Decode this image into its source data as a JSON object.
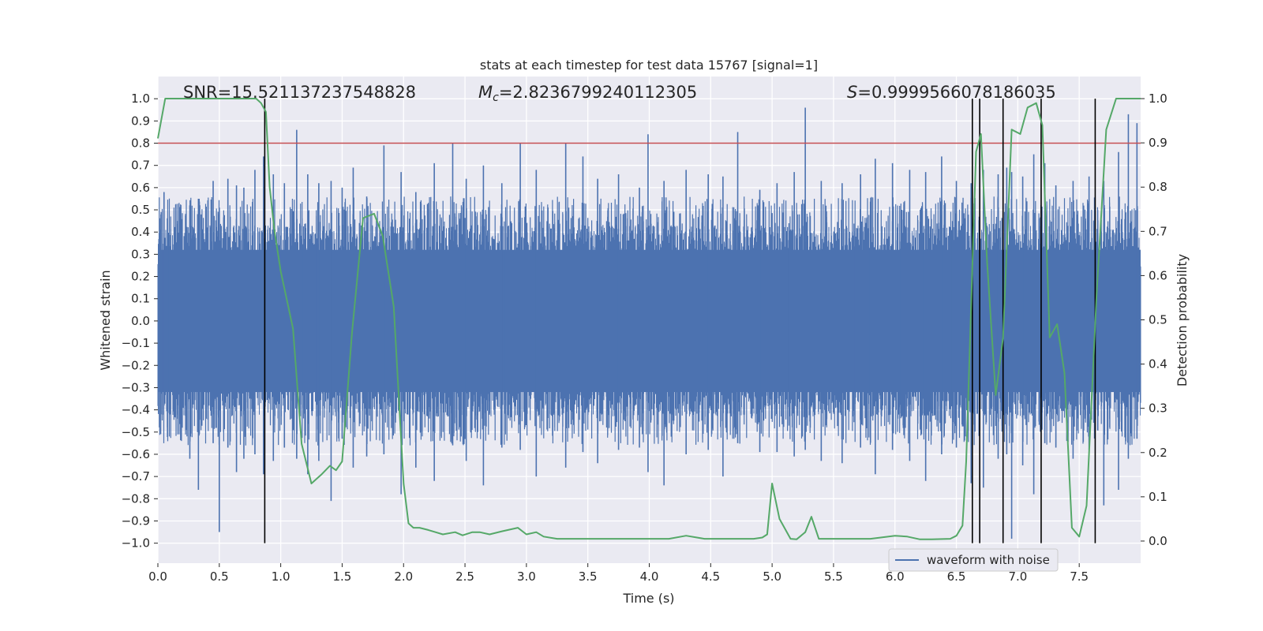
{
  "chart_data": {
    "type": "line",
    "title": "stats at each timestep for test data 15767 [signal=1]",
    "xlabel": "Time (s)",
    "ylabel_left": "Whitened strain",
    "ylabel_right": "Detection probability",
    "xlim": [
      0,
      8
    ],
    "ylim_left": [
      -1.09,
      1.1
    ],
    "ylim_right": [
      -0.05,
      1.05
    ],
    "x_ticks": [
      0.0,
      0.5,
      1.0,
      1.5,
      2.0,
      2.5,
      3.0,
      3.5,
      4.0,
      4.5,
      5.0,
      5.5,
      6.0,
      6.5,
      7.0,
      7.5
    ],
    "x_tick_labels": [
      "0.0",
      "0.5",
      "1.0",
      "1.5",
      "2.0",
      "2.5",
      "3.0",
      "3.5",
      "4.0",
      "4.5",
      "5.0",
      "5.5",
      "6.0",
      "6.5",
      "7.0",
      "7.5"
    ],
    "y_left_ticks": [
      1.0,
      0.9,
      0.8,
      0.7,
      0.6,
      0.5,
      0.4,
      0.3,
      0.2,
      0.1,
      0.0,
      -0.1,
      -0.2,
      -0.3,
      -0.4,
      -0.5,
      -0.6,
      -0.7,
      -0.8,
      -0.9,
      -1.0
    ],
    "y_left_tick_labels": [
      "1.0",
      "0.9",
      "0.8",
      "0.7",
      "0.6",
      "0.5",
      "0.4",
      "0.3",
      "0.2",
      "0.1",
      "0.0",
      "−0.1",
      "−0.2",
      "−0.3",
      "−0.4",
      "−0.5",
      "−0.6",
      "−0.7",
      "−0.8",
      "−0.9",
      "−1.0"
    ],
    "y_right_ticks": [
      1.0,
      0.9,
      0.8,
      0.7,
      0.6,
      0.5,
      0.4,
      0.3,
      0.2,
      0.1,
      0.0
    ],
    "y_right_tick_labels": [
      "1.0",
      "0.9",
      "0.8",
      "0.7",
      "0.6",
      "0.5",
      "0.4",
      "0.3",
      "0.2",
      "0.1",
      "0.0"
    ],
    "grid": true,
    "annotations": {
      "snr": "SNR=15.521137237548828",
      "mc": "=2.8236799240112305",
      "mc_symbol": "M",
      "mc_subscript": "c",
      "s": "=0.9999566078186035",
      "s_symbol": "S"
    },
    "threshold_line": {
      "y_left": 0.8,
      "color": "#c44e52"
    },
    "detection_lines_x": [
      0.87,
      6.63,
      6.69,
      6.88,
      7.19,
      7.63
    ],
    "waveform": {
      "name": "waveform with noise",
      "color": "#4c72b0",
      "envelope": 0.43,
      "spikes": [
        [
          0.05,
          0.58,
          -0.38
        ],
        [
          0.16,
          0.45,
          -0.44
        ],
        [
          0.26,
          0.52,
          -0.62
        ],
        [
          0.33,
          0.55,
          -0.76
        ],
        [
          0.45,
          0.63,
          -0.55
        ],
        [
          0.5,
          0.51,
          -0.95
        ],
        [
          0.57,
          0.64,
          -0.57
        ],
        [
          0.64,
          0.61,
          -0.68
        ],
        [
          0.7,
          0.6,
          -0.62
        ],
        [
          0.79,
          0.68,
          -0.6
        ],
        [
          0.86,
          0.74,
          -0.69
        ],
        [
          0.94,
          0.66,
          -0.63
        ],
        [
          1.03,
          0.62,
          -0.57
        ],
        [
          1.13,
          0.86,
          -0.62
        ],
        [
          1.22,
          0.66,
          -0.69
        ],
        [
          1.31,
          0.62,
          -0.63
        ],
        [
          1.41,
          0.63,
          -0.81
        ],
        [
          1.5,
          0.6,
          -0.53
        ],
        [
          1.59,
          0.69,
          -0.66
        ],
        [
          1.7,
          0.56,
          -0.61
        ],
        [
          1.84,
          0.79,
          -0.6
        ],
        [
          1.98,
          0.67,
          -0.78
        ],
        [
          2.1,
          0.58,
          -0.66
        ],
        [
          2.25,
          0.71,
          -0.72
        ],
        [
          2.4,
          0.8,
          -0.56
        ],
        [
          2.51,
          0.64,
          -0.63
        ],
        [
          2.65,
          0.7,
          -0.74
        ],
        [
          2.8,
          0.62,
          -0.57
        ],
        [
          2.95,
          0.8,
          -0.58
        ],
        [
          3.08,
          0.68,
          -0.7
        ],
        [
          3.32,
          0.8,
          -0.66
        ],
        [
          3.46,
          0.74,
          -0.59
        ],
        [
          3.58,
          0.64,
          -0.64
        ],
        [
          3.75,
          0.66,
          -0.58
        ],
        [
          3.92,
          0.6,
          -0.57
        ],
        [
          3.99,
          0.84,
          -0.68
        ],
        [
          4.12,
          0.63,
          -0.74
        ],
        [
          4.3,
          0.68,
          -0.6
        ],
        [
          4.48,
          0.66,
          -0.58
        ],
        [
          4.6,
          0.65,
          -0.7
        ],
        [
          4.72,
          0.85,
          -0.55
        ],
        [
          4.9,
          0.59,
          -0.59
        ],
        [
          5.04,
          0.62,
          -0.59
        ],
        [
          5.18,
          0.67,
          -0.61
        ],
        [
          5.27,
          0.96,
          -0.58
        ],
        [
          5.4,
          0.63,
          -0.63
        ],
        [
          5.57,
          0.62,
          -0.64
        ],
        [
          5.72,
          0.66,
          -0.57
        ],
        [
          5.84,
          0.73,
          -0.69
        ],
        [
          5.98,
          0.71,
          -0.58
        ],
        [
          6.12,
          0.68,
          -0.63
        ],
        [
          6.25,
          0.67,
          -0.72
        ],
        [
          6.38,
          0.74,
          -0.6
        ],
        [
          6.5,
          0.63,
          -0.57
        ],
        [
          6.62,
          0.62,
          -0.73
        ],
        [
          6.72,
          0.68,
          -0.75
        ],
        [
          6.84,
          0.66,
          -0.62
        ],
        [
          6.91,
          0.69,
          -0.6
        ],
        [
          6.95,
          0.67,
          -0.98
        ],
        [
          7.04,
          0.65,
          -0.65
        ],
        [
          7.13,
          0.75,
          -0.78
        ],
        [
          7.22,
          0.71,
          -0.55
        ],
        [
          7.31,
          0.61,
          -0.57
        ],
        [
          7.45,
          0.63,
          -0.62
        ],
        [
          7.58,
          0.65,
          -0.58
        ],
        [
          7.7,
          0.63,
          -0.83
        ],
        [
          7.82,
          0.76,
          -0.76
        ],
        [
          7.9,
          0.93,
          -0.62
        ],
        [
          7.97,
          0.89,
          -0.53
        ]
      ]
    },
    "detection_probability": {
      "color": "#55a868",
      "x": [
        0.0,
        0.06,
        0.2,
        0.4,
        0.6,
        0.8,
        0.84,
        0.88,
        0.91,
        0.95,
        1.0,
        1.1,
        1.17,
        1.25,
        1.33,
        1.4,
        1.45,
        1.5,
        1.58,
        1.67,
        1.76,
        1.83,
        1.92,
        2.0,
        2.04,
        2.08,
        2.13,
        2.2,
        2.26,
        2.32,
        2.42,
        2.48,
        2.56,
        2.62,
        2.7,
        2.8,
        2.93,
        3.0,
        3.08,
        3.14,
        3.25,
        3.45,
        3.6,
        3.8,
        4.0,
        4.16,
        4.3,
        4.45,
        4.6,
        4.75,
        4.85,
        4.92,
        4.96,
        5.0,
        5.06,
        5.15,
        5.2,
        5.27,
        5.32,
        5.38,
        5.5,
        5.8,
        6.0,
        6.1,
        6.2,
        6.3,
        6.45,
        6.5,
        6.55,
        6.58,
        6.63,
        6.66,
        6.7,
        6.75,
        6.82,
        6.88,
        6.95,
        7.02,
        7.08,
        7.15,
        7.2,
        7.26,
        7.32,
        7.38,
        7.44,
        7.5,
        7.56,
        7.64,
        7.72,
        7.8,
        7.86,
        8.0
      ],
      "y": [
        0.91,
        1.0,
        1.0,
        1.0,
        1.0,
        1.0,
        0.99,
        0.97,
        0.8,
        0.7,
        0.61,
        0.48,
        0.22,
        0.13,
        0.15,
        0.17,
        0.16,
        0.18,
        0.47,
        0.73,
        0.74,
        0.69,
        0.53,
        0.13,
        0.04,
        0.03,
        0.03,
        0.025,
        0.02,
        0.015,
        0.02,
        0.013,
        0.02,
        0.02,
        0.015,
        0.022,
        0.03,
        0.015,
        0.02,
        0.01,
        0.005,
        0.005,
        0.005,
        0.005,
        0.005,
        0.005,
        0.012,
        0.005,
        0.005,
        0.005,
        0.005,
        0.008,
        0.015,
        0.13,
        0.05,
        0.005,
        0.004,
        0.02,
        0.055,
        0.005,
        0.005,
        0.005,
        0.012,
        0.01,
        0.004,
        0.004,
        0.005,
        0.012,
        0.035,
        0.18,
        0.62,
        0.88,
        0.92,
        0.63,
        0.33,
        0.46,
        0.93,
        0.92,
        0.98,
        0.99,
        0.94,
        0.46,
        0.49,
        0.38,
        0.03,
        0.01,
        0.08,
        0.55,
        0.93,
        1.0,
        1.0,
        1.0
      ]
    },
    "legend": {
      "placement": "lower-right",
      "entries": [
        "waveform with noise"
      ]
    }
  }
}
